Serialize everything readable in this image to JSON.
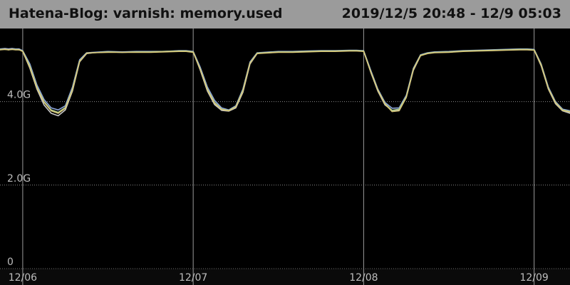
{
  "header": {
    "title": "Hatena-Blog: varnish: memory.used",
    "range": "2019/12/5 20:48 - 12/9 05:03"
  },
  "chart_data": {
    "type": "line",
    "title": "Hatena-Blog: varnish: memory.used",
    "xlabel": "",
    "ylabel": "",
    "x_ticks": [
      "12/06",
      "12/07",
      "12/08",
      "12/09"
    ],
    "y_ticks": [
      {
        "value": 0,
        "label": "0"
      },
      {
        "value": 2.0,
        "label": "2.0G"
      },
      {
        "value": 4.0,
        "label": "4.0G"
      }
    ],
    "ylim": [
      0,
      5.75
    ],
    "xlim_hours": [
      -3.2,
      77.05
    ],
    "grid": true,
    "x_hours": [
      -3.2,
      -2.5,
      -2,
      -1.5,
      -1,
      -0.5,
      0,
      1,
      2,
      3,
      4,
      5,
      6,
      7,
      8,
      9,
      10,
      12,
      14,
      16,
      18,
      20,
      22,
      23,
      24,
      25,
      26,
      27,
      28,
      29,
      30,
      31,
      32,
      33,
      34,
      36,
      38,
      40,
      42,
      44,
      46,
      47,
      48,
      49,
      50,
      51,
      52,
      53,
      54,
      55,
      56,
      57,
      58,
      60,
      62,
      64,
      66,
      68,
      70,
      71,
      72,
      73,
      74,
      75,
      76,
      77.05
    ],
    "series": [
      {
        "color": "#8aa3d8",
        "values": [
          5.26,
          5.27,
          5.26,
          5.27,
          5.26,
          5.26,
          5.22,
          4.9,
          4.4,
          4.05,
          3.85,
          3.8,
          3.9,
          4.35,
          5.0,
          5.17,
          5.18,
          5.2,
          5.19,
          5.2,
          5.2,
          5.2,
          5.22,
          5.22,
          5.2,
          4.82,
          4.35,
          4.03,
          3.85,
          3.8,
          3.9,
          4.3,
          4.95,
          5.17,
          5.18,
          5.2,
          5.2,
          5.21,
          5.22,
          5.22,
          5.23,
          5.23,
          5.22,
          4.75,
          4.3,
          3.98,
          3.84,
          3.85,
          4.15,
          4.8,
          5.12,
          5.17,
          5.19,
          5.2,
          5.22,
          5.23,
          5.24,
          5.25,
          5.26,
          5.26,
          5.25,
          4.9,
          4.35,
          4.0,
          3.82,
          3.78
        ]
      },
      {
        "color": "#c8c8c8",
        "values": [
          5.25,
          5.26,
          5.25,
          5.26,
          5.25,
          5.25,
          5.2,
          4.8,
          4.3,
          3.92,
          3.72,
          3.66,
          3.8,
          4.25,
          4.95,
          5.15,
          5.17,
          5.19,
          5.18,
          5.19,
          5.19,
          5.2,
          5.21,
          5.21,
          5.19,
          4.75,
          4.25,
          3.93,
          3.79,
          3.77,
          3.85,
          4.22,
          4.9,
          5.15,
          5.17,
          5.19,
          5.19,
          5.2,
          5.21,
          5.21,
          5.22,
          5.22,
          5.21,
          4.7,
          4.25,
          3.92,
          3.79,
          3.8,
          4.1,
          4.75,
          5.1,
          5.16,
          5.18,
          5.19,
          5.21,
          5.22,
          5.23,
          5.24,
          5.25,
          5.25,
          5.24,
          4.85,
          4.3,
          3.95,
          3.78,
          3.72
        ]
      },
      {
        "color": "#a9c98a",
        "values": [
          5.25,
          5.25,
          5.24,
          5.25,
          5.25,
          5.24,
          5.21,
          4.85,
          4.35,
          4.0,
          3.8,
          3.74,
          3.86,
          4.3,
          4.97,
          5.16,
          5.17,
          5.19,
          5.18,
          5.19,
          5.19,
          5.2,
          5.21,
          5.21,
          5.19,
          4.78,
          4.3,
          3.98,
          3.82,
          3.79,
          3.88,
          4.27,
          4.93,
          5.16,
          5.17,
          5.19,
          5.19,
          5.2,
          5.21,
          5.21,
          5.22,
          5.22,
          5.21,
          4.72,
          4.28,
          3.95,
          3.79,
          3.82,
          4.12,
          4.78,
          5.11,
          5.16,
          5.18,
          5.19,
          5.21,
          5.22,
          5.23,
          5.24,
          5.25,
          5.25,
          5.24,
          4.88,
          4.32,
          3.98,
          3.8,
          3.76
        ]
      },
      {
        "color": "#d8c87a",
        "values": [
          5.24,
          5.25,
          5.24,
          5.25,
          5.24,
          5.24,
          5.2,
          4.82,
          4.33,
          3.98,
          3.78,
          3.72,
          3.84,
          4.28,
          4.96,
          5.16,
          5.17,
          5.18,
          5.18,
          5.18,
          5.18,
          5.19,
          5.2,
          5.2,
          5.18,
          4.77,
          4.28,
          3.96,
          3.81,
          3.78,
          3.87,
          4.25,
          4.92,
          5.15,
          5.16,
          5.18,
          5.18,
          5.19,
          5.2,
          5.2,
          5.21,
          5.21,
          5.2,
          4.71,
          4.27,
          3.94,
          3.76,
          3.78,
          4.1,
          4.77,
          5.1,
          5.15,
          5.17,
          5.18,
          5.2,
          5.21,
          5.22,
          5.23,
          5.24,
          5.24,
          5.23,
          4.87,
          4.31,
          3.97,
          3.79,
          3.75
        ]
      }
    ]
  }
}
